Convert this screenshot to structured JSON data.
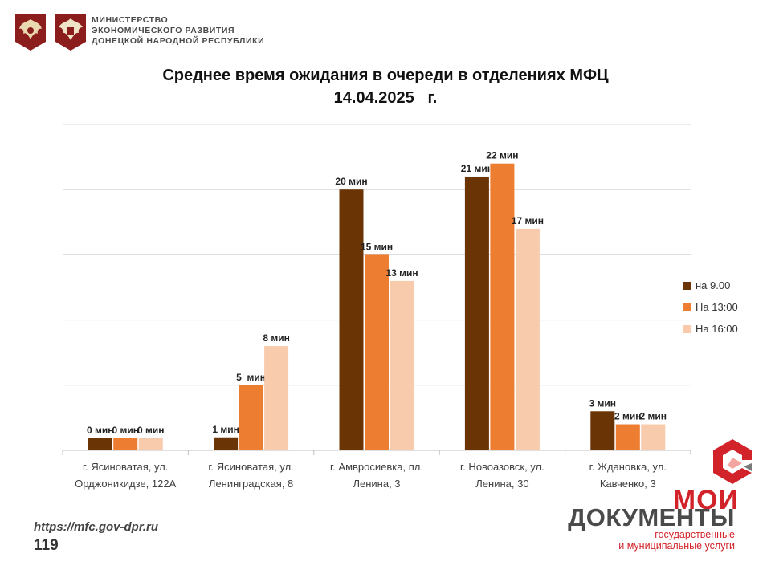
{
  "header": {
    "ministry_lines": [
      "МИНИСТЕРСТВО",
      "ЭКОНОМИЧЕСКОГО РАЗВИТИЯ",
      "ДОНЕЦКОЙ НАРОДНОЙ РЕСПУБЛИКИ"
    ]
  },
  "chart_data": {
    "type": "bar",
    "title": "Среднее время ожидания в очереди в отделениях МФЦ",
    "subtitle": "14.04.2025   г.",
    "xlabel": "",
    "ylabel": "",
    "ylim": [
      0,
      25
    ],
    "grid": true,
    "legend_position": "right",
    "categories": [
      [
        "г. Ясиноватая, ул.",
        "Орджоникидзе, 122А"
      ],
      [
        "г. Ясиноватая, ул.",
        "Ленинградская, 8"
      ],
      [
        "г. Амвросиевка, пл.",
        "Ленина, 3"
      ],
      [
        "г. Новоазовск, ул.",
        "Ленина, 30"
      ],
      [
        "г. Ждановка, ул.",
        "Кавченко, 3"
      ]
    ],
    "series": [
      {
        "name": "на 9.00",
        "color": "#6b3405",
        "values": [
          0,
          1,
          20,
          21,
          3
        ],
        "labels": [
          "0 мин",
          "1 мин",
          "20 мин",
          "21 мин",
          "3 мин"
        ]
      },
      {
        "name": "На 13:00",
        "color": "#ed7d31",
        "values": [
          0,
          5,
          15,
          22,
          2
        ],
        "labels": [
          "0 мин",
          "5  мин",
          "15 мин",
          "22 мин",
          "2 мин"
        ]
      },
      {
        "name": "На 16:00",
        "color": "#f8cbad",
        "values": [
          0,
          8,
          13,
          17,
          2
        ],
        "labels": [
          "0 мин",
          "8 мин",
          "13 мин",
          "17 мин",
          "2 мин"
        ]
      }
    ]
  },
  "footer": {
    "url": "https://mfc.gov-dpr.ru",
    "page_number": "119",
    "brand": {
      "line1": "МОИ",
      "line2": "ДОКУМЕНТЫ",
      "sub1": "государственные",
      "sub2": "и муниципальные услуги",
      "accent_color": "#d2232a"
    }
  }
}
